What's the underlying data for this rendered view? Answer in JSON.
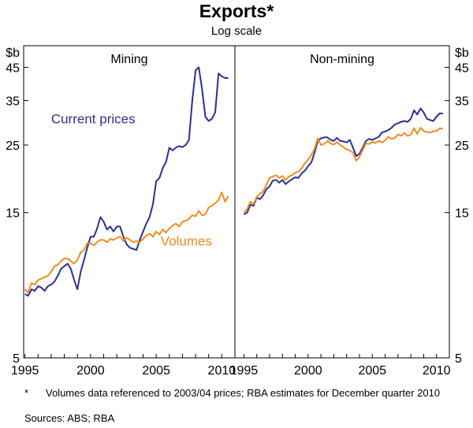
{
  "title": "Exports*",
  "subtitle": "Log scale",
  "footnote_marker": "*",
  "footnote": "Volumes data referenced to 2003/04 prices; RBA estimates for December quarter 2010",
  "sources": "Sources: ABS; RBA",
  "chart_data": {
    "type": "line",
    "scale": "log",
    "unit_label": "$b",
    "yticks": [
      5,
      15,
      25,
      35,
      45
    ],
    "ylim": [
      5,
      53
    ],
    "xticks": [
      1995,
      2000,
      2005,
      2010
    ],
    "colors": {
      "current_prices": "#2b2f97",
      "volumes": "#f28c1c",
      "axis": "#000000"
    },
    "panels": [
      {
        "name": "Mining",
        "xlim": [
          1994.9,
          2011.0
        ],
        "series": [
          {
            "name": "Current prices",
            "color_key": "current_prices",
            "x": [
              1995.0,
              1995.25,
              1995.5,
              1995.75,
              1996.0,
              1996.25,
              1996.5,
              1996.75,
              1997.0,
              1997.25,
              1997.5,
              1997.75,
              1998.0,
              1998.25,
              1998.5,
              1998.75,
              1999.0,
              1999.25,
              1999.5,
              1999.75,
              2000.0,
              2000.25,
              2000.5,
              2000.75,
              2001.0,
              2001.25,
              2001.5,
              2001.75,
              2002.0,
              2002.25,
              2002.5,
              2002.75,
              2003.0,
              2003.25,
              2003.5,
              2003.75,
              2004.0,
              2004.25,
              2004.5,
              2004.75,
              2005.0,
              2005.25,
              2005.5,
              2005.75,
              2006.0,
              2006.25,
              2006.5,
              2006.75,
              2007.0,
              2007.25,
              2007.5,
              2007.75,
              2008.0,
              2008.25,
              2008.5,
              2008.75,
              2009.0,
              2009.25,
              2009.5,
              2009.75,
              2010.0,
              2010.25,
              2010.5
            ],
            "values": [
              8.1,
              8.0,
              8.4,
              8.3,
              8.6,
              8.5,
              8.3,
              8.6,
              8.7,
              8.9,
              9.3,
              9.8,
              10.0,
              10.2,
              9.8,
              9.0,
              8.4,
              9.6,
              10.5,
              11.5,
              12.5,
              12.5,
              13.3,
              14.5,
              14.0,
              13.2,
              13.5,
              13.0,
              13.5,
              13.5,
              12.5,
              11.8,
              11.5,
              11.4,
              11.3,
              12.2,
              13.0,
              13.8,
              14.5,
              16.0,
              19.0,
              19.5,
              21.0,
              22.0,
              24.5,
              24.0,
              24.5,
              24.8,
              24.6,
              25.0,
              26.0,
              35.0,
              44.0,
              45.0,
              38.0,
              31.0,
              30.0,
              30.5,
              32.0,
              43.0,
              42.0,
              41.5,
              41.5
            ]
          },
          {
            "name": "Volumes",
            "color_key": "volumes",
            "x": [
              1995.0,
              1995.25,
              1995.5,
              1995.75,
              1996.0,
              1996.25,
              1996.5,
              1996.75,
              1997.0,
              1997.25,
              1997.5,
              1997.75,
              1998.0,
              1998.25,
              1998.5,
              1998.75,
              1999.0,
              1999.25,
              1999.5,
              1999.75,
              2000.0,
              2000.25,
              2000.5,
              2000.75,
              2001.0,
              2001.25,
              2001.5,
              2001.75,
              2002.0,
              2002.25,
              2002.5,
              2002.75,
              2003.0,
              2003.25,
              2003.5,
              2003.75,
              2004.0,
              2004.25,
              2004.5,
              2004.75,
              2005.0,
              2005.25,
              2005.5,
              2005.75,
              2006.0,
              2006.25,
              2006.5,
              2006.75,
              2007.0,
              2007.25,
              2007.5,
              2007.75,
              2008.0,
              2008.25,
              2008.5,
              2008.75,
              2009.0,
              2009.25,
              2009.5,
              2009.75,
              2010.0,
              2010.25,
              2010.5
            ],
            "values": [
              8.4,
              8.2,
              8.8,
              8.7,
              9.0,
              9.1,
              9.2,
              9.3,
              9.6,
              10.0,
              10.1,
              10.4,
              10.6,
              10.6,
              10.4,
              10.2,
              10.5,
              11.1,
              11.3,
              11.9,
              11.9,
              11.7,
              12.0,
              12.2,
              12.2,
              12.0,
              12.3,
              12.2,
              12.4,
              12.5,
              12.1,
              12.4,
              12.2,
              12.0,
              12.1,
              12.0,
              12.3,
              12.6,
              12.8,
              12.5,
              13.0,
              12.7,
              13.2,
              12.9,
              13.3,
              13.6,
              13.8,
              13.5,
              14.0,
              14.1,
              14.3,
              14.7,
              14.6,
              15.2,
              14.7,
              14.8,
              15.6,
              15.8,
              16.1,
              16.5,
              17.5,
              16.3,
              17.0
            ]
          }
        ]
      },
      {
        "name": "Non-mining",
        "xlim": [
          1994.3,
          2011.0
        ],
        "series": [
          {
            "name": "Current prices",
            "color_key": "current_prices",
            "x": [
              1995.0,
              1995.25,
              1995.5,
              1995.75,
              1996.0,
              1996.25,
              1996.5,
              1996.75,
              1997.0,
              1997.25,
              1997.5,
              1997.75,
              1998.0,
              1998.25,
              1998.5,
              1998.75,
              1999.0,
              1999.25,
              1999.5,
              1999.75,
              2000.0,
              2000.25,
              2000.5,
              2000.75,
              2001.0,
              2001.25,
              2001.5,
              2001.75,
              2002.0,
              2002.25,
              2002.5,
              2002.75,
              2003.0,
              2003.25,
              2003.5,
              2003.75,
              2004.0,
              2004.25,
              2004.5,
              2004.75,
              2005.0,
              2005.25,
              2005.5,
              2005.75,
              2006.0,
              2006.25,
              2006.5,
              2006.75,
              2007.0,
              2007.25,
              2007.5,
              2007.75,
              2008.0,
              2008.25,
              2008.5,
              2008.75,
              2009.0,
              2009.25,
              2009.5,
              2009.75,
              2010.0,
              2010.25,
              2010.5
            ],
            "values": [
              14.8,
              15.0,
              15.9,
              15.8,
              16.8,
              16.6,
              17.1,
              17.9,
              18.3,
              19.1,
              19.2,
              18.8,
              19.2,
              18.6,
              19.0,
              19.3,
              19.6,
              19.5,
              20.2,
              20.6,
              21.3,
              21.9,
              23.6,
              25.8,
              26.3,
              26.5,
              26.5,
              26.0,
              25.8,
              26.4,
              25.8,
              25.7,
              25.5,
              26.0,
              24.5,
              23.0,
              23.4,
              24.5,
              25.8,
              26.2,
              26.0,
              26.3,
              26.6,
              27.5,
              27.7,
              28.0,
              28.5,
              29.2,
              29.5,
              29.8,
              30.0,
              29.8,
              30.5,
              32.5,
              31.5,
              33.0,
              32.0,
              30.5,
              30.2,
              30.0,
              31.0,
              31.8,
              31.7
            ]
          },
          {
            "name": "Volumes",
            "color_key": "volumes",
            "x": [
              1995.0,
              1995.25,
              1995.5,
              1995.75,
              1996.0,
              1996.25,
              1996.5,
              1996.75,
              1997.0,
              1997.25,
              1997.5,
              1997.75,
              1998.0,
              1998.25,
              1998.5,
              1998.75,
              1999.0,
              1999.25,
              1999.5,
              1999.75,
              2000.0,
              2000.25,
              2000.5,
              2000.75,
              2001.0,
              2001.25,
              2001.5,
              2001.75,
              2002.0,
              2002.25,
              2002.5,
              2002.75,
              2003.0,
              2003.25,
              2003.5,
              2003.75,
              2004.0,
              2004.25,
              2004.5,
              2004.75,
              2005.0,
              2005.25,
              2005.5,
              2005.75,
              2006.0,
              2006.25,
              2006.5,
              2006.75,
              2007.0,
              2007.25,
              2007.5,
              2007.75,
              2008.0,
              2008.25,
              2008.5,
              2008.75,
              2009.0,
              2009.25,
              2009.5,
              2009.75,
              2010.0,
              2010.25,
              2010.5
            ],
            "values": [
              15.0,
              15.4,
              16.3,
              16.0,
              16.9,
              17.3,
              17.6,
              18.5,
              19.5,
              19.7,
              19.9,
              19.5,
              19.8,
              19.2,
              19.7,
              19.9,
              20.3,
              20.4,
              21.0,
              21.8,
              22.4,
              23.2,
              24.3,
              26.3,
              25.0,
              25.2,
              25.8,
              25.3,
              25.1,
              25.6,
              25.0,
              24.6,
              24.2,
              24.0,
              23.6,
              22.2,
              22.9,
              24.1,
              25.3,
              25.2,
              25.6,
              25.4,
              25.8,
              25.5,
              25.9,
              26.6,
              26.2,
              26.4,
              27.1,
              26.8,
              27.4,
              26.8,
              27.0,
              28.4,
              27.2,
              28.5,
              27.8,
              27.6,
              27.5,
              27.7,
              27.8,
              28.4,
              28.3
            ]
          }
        ]
      }
    ],
    "labels": [
      {
        "text": "Current prices",
        "panel": 0,
        "x": 2000.2,
        "y": 29.5,
        "color_key": "current_prices"
      },
      {
        "text": "Volumes",
        "panel": 0,
        "x": 2007.3,
        "y": 11.7,
        "color_key": "volumes"
      }
    ]
  }
}
